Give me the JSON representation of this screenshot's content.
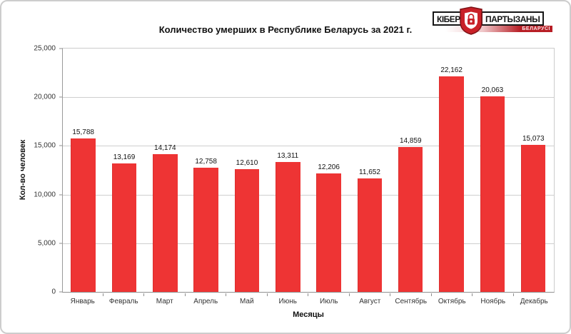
{
  "logo": {
    "part1": "КІБЕР",
    "part2": "ПАРТЫЗАНЫ",
    "subtitle": "БЕЛАРУСІ",
    "shield_color": "#c92128"
  },
  "chart_data": {
    "type": "bar",
    "title": "Количество умерших в Республике Беларусь за 2021 г.",
    "xlabel": "Месяцы",
    "ylabel": "Кол-во человек",
    "categories": [
      "Январь",
      "Февраль",
      "Март",
      "Апрель",
      "Май",
      "Июнь",
      "Июль",
      "Август",
      "Сентябрь",
      "Октябрь",
      "Ноябрь",
      "Декабрь"
    ],
    "values": [
      15788,
      13169,
      14174,
      12758,
      12610,
      13311,
      12206,
      11652,
      14859,
      22162,
      20063,
      15073
    ],
    "value_labels": [
      "15,788",
      "13,169",
      "14,174",
      "12,758",
      "12,610",
      "13,311",
      "12,206",
      "11,652",
      "14,859",
      "22,162",
      "20,063",
      "15,073"
    ],
    "ylim": [
      0,
      25000
    ],
    "y_tick_step": 5000,
    "y_tick_labels": [
      "0",
      "5,000",
      "10,000",
      "15,000",
      "20,000",
      "25,000"
    ],
    "bar_color": "#ee3434",
    "grid": true,
    "legend": false
  }
}
